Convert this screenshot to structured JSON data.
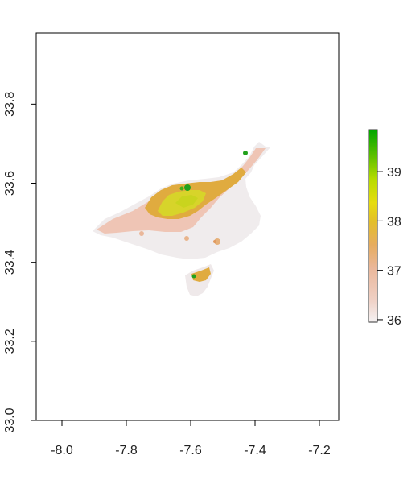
{
  "map": {
    "type": "raster",
    "x_axis": {
      "range": [
        -8.08,
        -7.14
      ],
      "ticks": [
        -8.0,
        -7.8,
        -7.6,
        -7.4,
        -7.2
      ],
      "tick_labels": [
        "-8.0",
        "-7.8",
        "-7.6",
        "-7.4",
        "-7.2"
      ]
    },
    "y_axis": {
      "range": [
        33.0,
        33.98
      ],
      "ticks": [
        33.0,
        33.2,
        33.4,
        33.6,
        33.8
      ],
      "tick_labels": [
        "33.0",
        "33.2",
        "33.4",
        "33.6",
        "33.8"
      ]
    },
    "legend": {
      "placement": "right",
      "min": 35.95,
      "max": 39.85,
      "ticks": [
        36,
        37,
        38,
        39
      ],
      "tick_labels": [
        "36",
        "37",
        "38",
        "39"
      ],
      "colors": [
        "#f2f2f2",
        "#eec2aa",
        "#e6a96c",
        "#e0b03a",
        "#e6d21e",
        "#bfe000",
        "#7cc400",
        "#2ea500",
        "#00a600"
      ]
    },
    "region_colors": {
      "base": "#f0eced",
      "low": "#eebfaa",
      "mid": "#e0ab3f",
      "high": "#d6d52a",
      "peak": "#22a11c"
    }
  }
}
